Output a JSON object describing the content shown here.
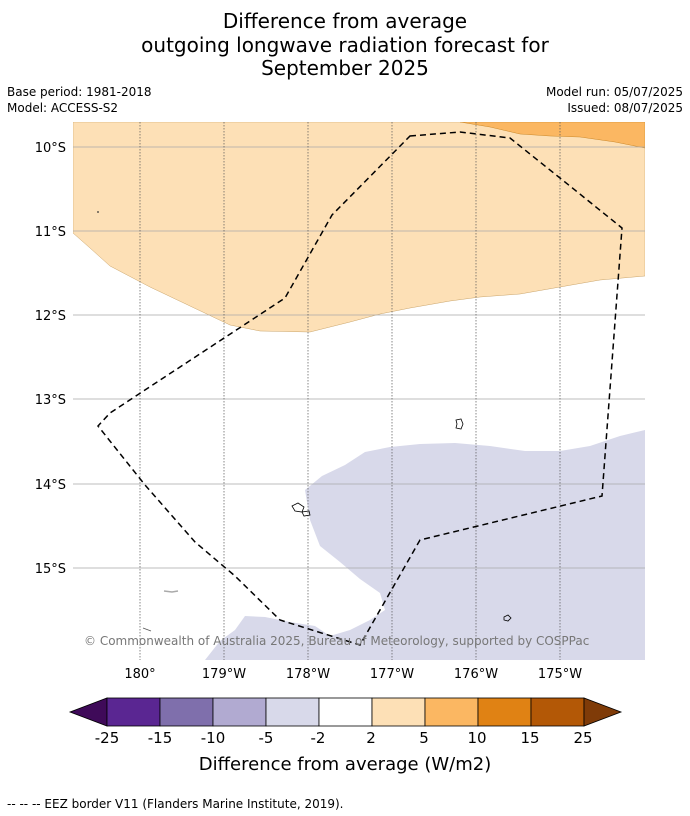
{
  "title": {
    "line1": "Difference from average",
    "line2": "outgoing longwave radiation forecast for",
    "line3": "September 2025"
  },
  "meta": {
    "base_period": "Base period: 1981-2018",
    "model": "Model: ACCESS-S2",
    "model_run": "Model run: 05/07/2025",
    "issued": "Issued: 08/07/2025"
  },
  "map": {
    "lat_labels": [
      "10°S",
      "11°S",
      "12°S",
      "13°S",
      "14°S",
      "15°S"
    ],
    "lon_labels": [
      "180°",
      "179°W",
      "178°W",
      "177°W",
      "176°W",
      "175°W"
    ],
    "copyright": "© Commonwealth of Australia 2025, Bureau of Meteorology, supported by COSPPac",
    "colors": {
      "anom_2_5": "#fde0b6",
      "anom_5_10": "#fbb762",
      "anom_neg5_neg2": "#d8d9ea",
      "eez_line": "#000000"
    }
  },
  "colorbar": {
    "tick_labels": [
      "-25",
      "-15",
      "-10",
      "-5",
      "-2",
      "2",
      "5",
      "10",
      "15",
      "25"
    ],
    "label": "Difference from average (W/m2)",
    "colors": [
      "#3f0a59",
      "#5a2692",
      "#7f6fac",
      "#b1aad1",
      "#d8d9ea",
      "#ffffff",
      "#fde0b6",
      "#fbb762",
      "#e08214",
      "#b35806",
      "#7f3b08"
    ]
  },
  "footer": {
    "legend_text": "--  --  -- EEZ border V11 (Flanders Marine Institute, 2019)."
  }
}
